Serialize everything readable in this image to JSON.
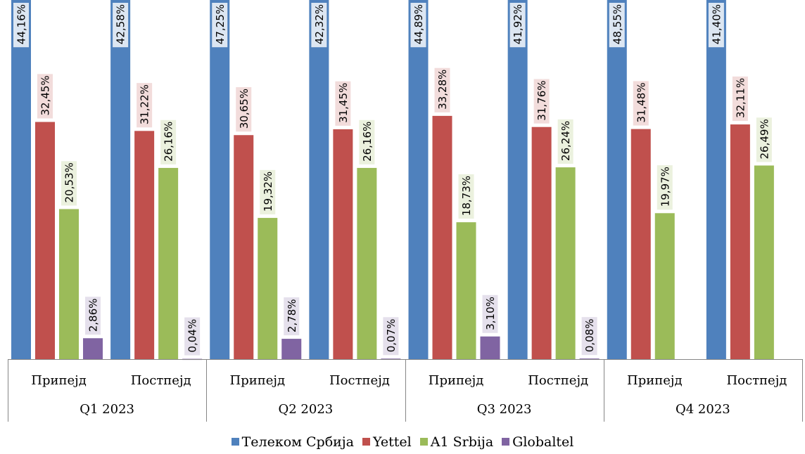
{
  "chart_data": {
    "type": "bar",
    "groups": [
      {
        "quarter": "Q1 2023",
        "categories": [
          "Припејд",
          "Постпејд"
        ]
      },
      {
        "quarter": "Q2 2023",
        "categories": [
          "Припејд",
          "Постпејд"
        ]
      },
      {
        "quarter": "Q3 2023",
        "categories": [
          "Припејд",
          "Постпејд"
        ]
      },
      {
        "quarter": "Q4 2023",
        "categories": [
          "Припејд",
          "Постпејд"
        ]
      }
    ],
    "categories": [
      "Q1 2023 Припејд",
      "Q1 2023 Постпејд",
      "Q2 2023 Припејд",
      "Q2 2023 Постпејд",
      "Q3 2023 Припејд",
      "Q3 2023 Постпејд",
      "Q4 2023 Припејд",
      "Q4 2023 Постпејд"
    ],
    "series": [
      {
        "name": "Телеком Србија",
        "color": "#4F81BD",
        "label_bg": "#DCE6F2",
        "values": [
          44.16,
          42.58,
          47.25,
          42.32,
          44.89,
          41.92,
          48.55,
          41.4
        ],
        "labels": [
          "44,16%",
          "42,58%",
          "47,25%",
          "42,32%",
          "44,89%",
          "41,92%",
          "48,55%",
          "41,40%"
        ]
      },
      {
        "name": "Yettel",
        "color": "#C0504D",
        "label_bg": "#F2DCDB",
        "values": [
          32.45,
          31.22,
          30.65,
          31.45,
          33.28,
          31.76,
          31.48,
          32.11
        ],
        "labels": [
          "32,45%",
          "31,22%",
          "30,65%",
          "31,45%",
          "33,28%",
          "31,76%",
          "31,48%",
          "32,11%"
        ]
      },
      {
        "name": "A1 Srbija",
        "color": "#9BBB59",
        "label_bg": "#EBF1DE",
        "values": [
          20.53,
          26.16,
          19.32,
          26.16,
          18.73,
          26.24,
          19.97,
          26.49
        ],
        "labels": [
          "20,53%",
          "26,16%",
          "19,32%",
          "26,16%",
          "18,73%",
          "26,24%",
          "19,97%",
          "26,49%"
        ]
      },
      {
        "name": "Globaltel",
        "color": "#8064A2",
        "label_bg": "#E5E0EC",
        "values": [
          2.86,
          0.04,
          2.78,
          0.07,
          3.1,
          0.08,
          null,
          null
        ],
        "labels": [
          "2,86%",
          "0,04%",
          "2,78%",
          "0,07%",
          "3,10%",
          "0,08%",
          null,
          null
        ]
      }
    ],
    "ylim": [
      0,
      40
    ],
    "data_labels": "vertical, inside-end",
    "legend": "bottom",
    "grid": false
  }
}
